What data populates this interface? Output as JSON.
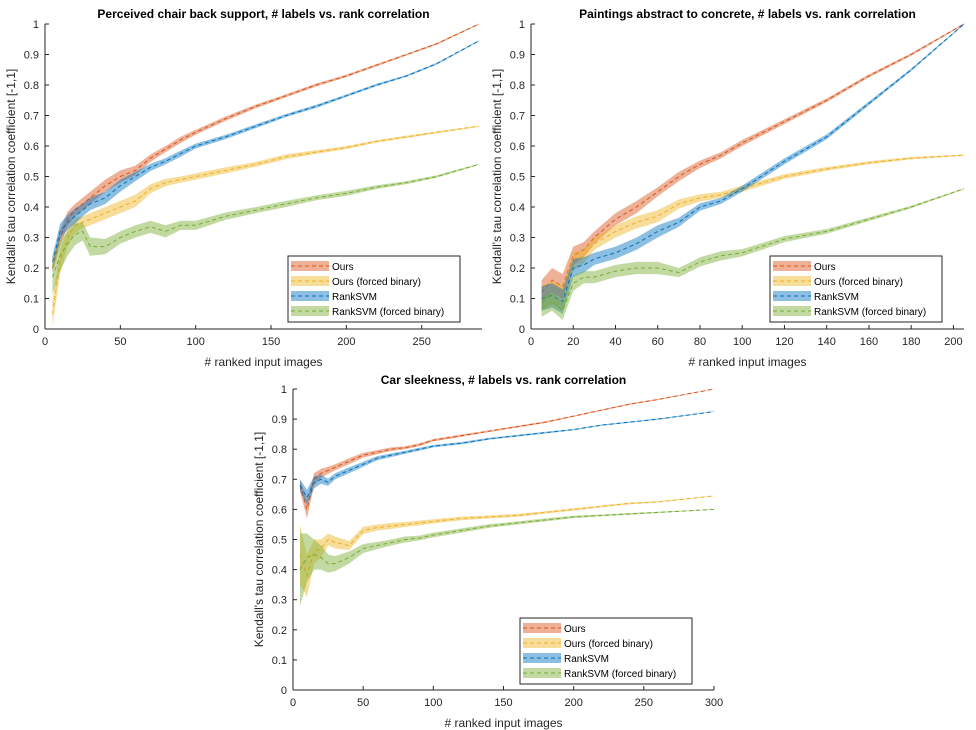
{
  "chart_data": [
    {
      "type": "line",
      "title": "Perceived chair back support, # labels vs. rank correlation",
      "xlabel": "# ranked input images",
      "ylabel": "Kendall's tau correlation coefficient [-1,1]",
      "xlim": [
        0,
        290
      ],
      "ylim": [
        0,
        1
      ],
      "xticks": [
        0,
        50,
        100,
        150,
        200,
        250
      ],
      "yticks": [
        0,
        0.1,
        0.2,
        0.3,
        0.4,
        0.5,
        0.6,
        0.7,
        0.8,
        0.9,
        1
      ],
      "ytick_labels": [
        "0",
        "0.1",
        "0.2",
        "0.3",
        "0.4",
        "0.5",
        "0.6",
        "0.7",
        "0.8",
        "0.9",
        "1"
      ],
      "grid": false,
      "legend": "bottom-right",
      "x": [
        5,
        10,
        15,
        20,
        25,
        30,
        40,
        50,
        60,
        70,
        80,
        90,
        100,
        120,
        140,
        160,
        180,
        200,
        220,
        240,
        260,
        288
      ],
      "series": [
        {
          "name": "Ours",
          "color": "#d95319",
          "values": [
            0.2,
            0.3,
            0.36,
            0.39,
            0.41,
            0.43,
            0.47,
            0.5,
            0.52,
            0.56,
            0.59,
            0.62,
            0.645,
            0.69,
            0.73,
            0.765,
            0.8,
            0.83,
            0.865,
            0.9,
            0.935,
            1.0
          ],
          "band": [
            0.015,
            0.025,
            0.025,
            0.02,
            0.02,
            0.02,
            0.02,
            0.02,
            0.015,
            0.012,
            0.01,
            0.01,
            0.008,
            0.007,
            0.006,
            0.005,
            0.005,
            0.004,
            0.004,
            0.003,
            0.003,
            0.002
          ]
        },
        {
          "name": "Ours (forced binary)",
          "color": "#edb120",
          "values": [
            0.05,
            0.22,
            0.3,
            0.34,
            0.35,
            0.36,
            0.38,
            0.4,
            0.42,
            0.46,
            0.48,
            0.49,
            0.5,
            0.52,
            0.54,
            0.565,
            0.58,
            0.595,
            0.615,
            0.63,
            0.645,
            0.665
          ],
          "band": [
            0.04,
            0.04,
            0.03,
            0.025,
            0.02,
            0.02,
            0.02,
            0.02,
            0.02,
            0.015,
            0.012,
            0.01,
            0.01,
            0.01,
            0.008,
            0.008,
            0.006,
            0.005,
            0.004,
            0.004,
            0.003,
            0.002
          ]
        },
        {
          "name": "RankSVM",
          "color": "#0072bd",
          "values": [
            0.22,
            0.32,
            0.35,
            0.37,
            0.39,
            0.41,
            0.43,
            0.47,
            0.5,
            0.53,
            0.55,
            0.575,
            0.6,
            0.63,
            0.665,
            0.7,
            0.73,
            0.765,
            0.8,
            0.83,
            0.87,
            0.945
          ],
          "band": [
            0.02,
            0.025,
            0.025,
            0.025,
            0.02,
            0.02,
            0.02,
            0.02,
            0.015,
            0.012,
            0.01,
            0.01,
            0.008,
            0.007,
            0.006,
            0.005,
            0.005,
            0.004,
            0.004,
            0.003,
            0.003,
            0.002
          ]
        },
        {
          "name": "RankSVM (forced binary)",
          "color": "#77ac30",
          "values": [
            0.17,
            0.24,
            0.28,
            0.31,
            0.32,
            0.27,
            0.27,
            0.3,
            0.32,
            0.335,
            0.32,
            0.34,
            0.34,
            0.37,
            0.39,
            0.41,
            0.43,
            0.445,
            0.465,
            0.48,
            0.5,
            0.54
          ],
          "band": [
            0.06,
            0.05,
            0.04,
            0.035,
            0.03,
            0.03,
            0.025,
            0.02,
            0.02,
            0.02,
            0.02,
            0.015,
            0.015,
            0.012,
            0.01,
            0.01,
            0.008,
            0.008,
            0.006,
            0.005,
            0.004,
            0.002
          ]
        }
      ]
    },
    {
      "type": "line",
      "title": "Paintings abstract to concrete, # labels vs. rank correlation",
      "xlabel": "# ranked input images",
      "ylabel": "Kendall's tau correlation coefficient [-1,1]",
      "xlim": [
        0,
        205
      ],
      "ylim": [
        0,
        1
      ],
      "xticks": [
        0,
        20,
        40,
        60,
        80,
        100,
        120,
        140,
        160,
        180,
        200
      ],
      "yticks": [
        0,
        0.1,
        0.2,
        0.3,
        0.4,
        0.5,
        0.6,
        0.7,
        0.8,
        0.9,
        1
      ],
      "ytick_labels": [
        "0",
        "0.1",
        "0.2",
        "0.3",
        "0.4",
        "0.5",
        "0.6",
        "0.7",
        "0.8",
        "0.9",
        "1"
      ],
      "grid": false,
      "legend": "bottom-right",
      "x": [
        5,
        10,
        15,
        20,
        25,
        30,
        40,
        50,
        60,
        70,
        80,
        90,
        100,
        120,
        140,
        160,
        180,
        205
      ],
      "series": [
        {
          "name": "Ours",
          "color": "#d95319",
          "values": [
            0.12,
            0.16,
            0.14,
            0.24,
            0.26,
            0.3,
            0.36,
            0.4,
            0.45,
            0.5,
            0.54,
            0.57,
            0.61,
            0.68,
            0.75,
            0.83,
            0.9,
            1.0
          ],
          "band": [
            0.04,
            0.04,
            0.04,
            0.03,
            0.025,
            0.02,
            0.02,
            0.02,
            0.015,
            0.015,
            0.012,
            0.01,
            0.01,
            0.008,
            0.006,
            0.005,
            0.004,
            0.002
          ]
        },
        {
          "name": "Ours (forced binary)",
          "color": "#edb120",
          "values": [
            0.1,
            0.12,
            0.1,
            0.22,
            0.24,
            0.28,
            0.32,
            0.35,
            0.37,
            0.41,
            0.43,
            0.44,
            0.46,
            0.5,
            0.525,
            0.545,
            0.56,
            0.57
          ],
          "band": [
            0.04,
            0.04,
            0.04,
            0.03,
            0.025,
            0.02,
            0.02,
            0.02,
            0.02,
            0.015,
            0.012,
            0.01,
            0.01,
            0.008,
            0.006,
            0.005,
            0.004,
            0.002
          ]
        },
        {
          "name": "RankSVM",
          "color": "#0072bd",
          "values": [
            0.1,
            0.11,
            0.09,
            0.2,
            0.21,
            0.23,
            0.25,
            0.28,
            0.32,
            0.35,
            0.4,
            0.42,
            0.46,
            0.55,
            0.63,
            0.74,
            0.85,
            1.0
          ],
          "band": [
            0.04,
            0.04,
            0.04,
            0.03,
            0.025,
            0.02,
            0.02,
            0.02,
            0.02,
            0.015,
            0.012,
            0.01,
            0.01,
            0.01,
            0.008,
            0.006,
            0.004,
            0.002
          ]
        },
        {
          "name": "RankSVM (forced binary)",
          "color": "#77ac30",
          "values": [
            0.07,
            0.09,
            0.06,
            0.15,
            0.17,
            0.17,
            0.19,
            0.2,
            0.2,
            0.185,
            0.22,
            0.24,
            0.25,
            0.295,
            0.32,
            0.36,
            0.4,
            0.46
          ],
          "band": [
            0.03,
            0.03,
            0.03,
            0.025,
            0.02,
            0.02,
            0.02,
            0.02,
            0.02,
            0.015,
            0.015,
            0.015,
            0.012,
            0.01,
            0.008,
            0.006,
            0.004,
            0.002
          ]
        }
      ]
    },
    {
      "type": "line",
      "title": "Car sleekness, # labels vs. rank correlation",
      "xlabel": "# ranked input images",
      "ylabel": "Kendall's tau correlation coefficient [-1,1]",
      "xlim": [
        0,
        300
      ],
      "ylim": [
        0,
        1
      ],
      "xticks": [
        0,
        50,
        100,
        150,
        200,
        250,
        300
      ],
      "yticks": [
        0,
        0.1,
        0.2,
        0.3,
        0.4,
        0.5,
        0.6,
        0.7,
        0.8,
        0.9,
        1
      ],
      "ytick_labels": [
        "0",
        "0.1",
        "0.2",
        "0.3",
        "0.4",
        "0.5",
        "0.6",
        "0.7",
        "0.8",
        "0.9",
        "1"
      ],
      "grid": false,
      "legend": "bottom-right",
      "x": [
        5,
        10,
        15,
        20,
        25,
        30,
        40,
        50,
        60,
        70,
        80,
        90,
        100,
        120,
        140,
        160,
        180,
        200,
        220,
        240,
        260,
        300
      ],
      "series": [
        {
          "name": "Ours",
          "color": "#d95319",
          "values": [
            0.68,
            0.6,
            0.7,
            0.72,
            0.73,
            0.74,
            0.76,
            0.78,
            0.79,
            0.8,
            0.805,
            0.815,
            0.83,
            0.845,
            0.86,
            0.875,
            0.89,
            0.91,
            0.93,
            0.95,
            0.965,
            1.0
          ],
          "band": [
            0.02,
            0.03,
            0.02,
            0.015,
            0.012,
            0.01,
            0.01,
            0.008,
            0.007,
            0.006,
            0.005,
            0.005,
            0.004,
            0.004,
            0.003,
            0.003,
            0.003,
            0.002,
            0.002,
            0.002,
            0.002,
            0.001
          ]
        },
        {
          "name": "Ours (forced binary)",
          "color": "#edb120",
          "values": [
            0.45,
            0.38,
            0.46,
            0.47,
            0.5,
            0.49,
            0.48,
            0.53,
            0.54,
            0.545,
            0.55,
            0.555,
            0.56,
            0.57,
            0.575,
            0.58,
            0.59,
            0.6,
            0.61,
            0.62,
            0.625,
            0.645
          ],
          "band": [
            0.1,
            0.07,
            0.04,
            0.03,
            0.02,
            0.02,
            0.015,
            0.012,
            0.01,
            0.01,
            0.008,
            0.008,
            0.007,
            0.006,
            0.005,
            0.005,
            0.004,
            0.004,
            0.003,
            0.003,
            0.002,
            0.001
          ]
        },
        {
          "name": "RankSVM",
          "color": "#0072bd",
          "values": [
            0.68,
            0.64,
            0.69,
            0.7,
            0.69,
            0.71,
            0.73,
            0.75,
            0.77,
            0.78,
            0.79,
            0.8,
            0.81,
            0.82,
            0.835,
            0.845,
            0.855,
            0.865,
            0.88,
            0.89,
            0.9,
            0.925
          ],
          "band": [
            0.02,
            0.025,
            0.02,
            0.015,
            0.012,
            0.01,
            0.01,
            0.008,
            0.007,
            0.006,
            0.005,
            0.005,
            0.004,
            0.004,
            0.003,
            0.003,
            0.003,
            0.002,
            0.002,
            0.002,
            0.002,
            0.001
          ]
        },
        {
          "name": "RankSVM (forced binary)",
          "color": "#77ac30",
          "values": [
            0.4,
            0.44,
            0.45,
            0.44,
            0.42,
            0.42,
            0.44,
            0.47,
            0.48,
            0.49,
            0.5,
            0.505,
            0.515,
            0.53,
            0.545,
            0.555,
            0.565,
            0.575,
            0.58,
            0.585,
            0.59,
            0.6
          ],
          "band": [
            0.12,
            0.08,
            0.05,
            0.04,
            0.03,
            0.025,
            0.02,
            0.015,
            0.012,
            0.01,
            0.01,
            0.008,
            0.008,
            0.007,
            0.006,
            0.005,
            0.005,
            0.004,
            0.003,
            0.003,
            0.002,
            0.001
          ]
        }
      ]
    }
  ]
}
